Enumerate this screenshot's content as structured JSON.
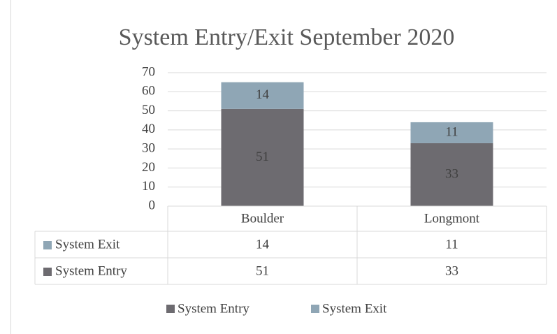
{
  "chart_data": {
    "type": "stacked-bar",
    "title": "System Entry/Exit September 2020",
    "categories": [
      "Boulder",
      "Longmont"
    ],
    "series": [
      {
        "name": "System Entry",
        "color": "#6d6b70",
        "values": [
          51,
          33
        ]
      },
      {
        "name": "System Exit",
        "color": "#8fa6b5",
        "values": [
          14,
          11
        ]
      }
    ],
    "ylim": [
      0,
      70
    ],
    "yticks": [
      0,
      10,
      20,
      30,
      40,
      50,
      60,
      70
    ],
    "grid": true,
    "legend": "bottom"
  }
}
